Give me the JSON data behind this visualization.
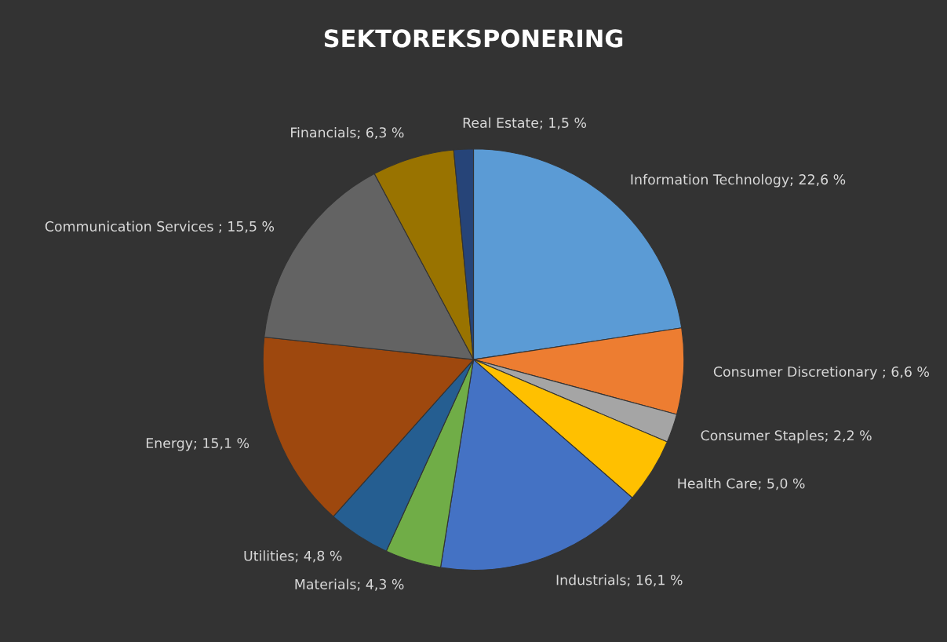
{
  "chart_data": {
    "type": "pie",
    "title": "SEKTOREKSPONERING",
    "categories": [
      "Information Technology",
      "Consumer Discretionary ",
      "Consumer Staples",
      "Health Care",
      "Industrials",
      "Materials",
      "Utilities",
      "Energy",
      "Communication Services ",
      "Financials",
      "Real Estate"
    ],
    "values": [
      22.6,
      6.6,
      2.2,
      5.0,
      16.1,
      4.3,
      4.8,
      15.1,
      15.5,
      6.3,
      1.5
    ],
    "value_labels": [
      "22,6 %",
      "6,6 %",
      "2,2 %",
      "5,0 %",
      "16,1 %",
      "4,3 %",
      "4,8 %",
      "15,1 %",
      "15,5 %",
      "6,3 %",
      "1,5 %"
    ],
    "colors": [
      "#5b9bd5",
      "#ed7d31",
      "#a5a5a5",
      "#ffc000",
      "#4472c4",
      "#70ad47",
      "#255e91",
      "#9e480e",
      "#636363",
      "#997300",
      "#264478"
    ],
    "legend": false
  }
}
